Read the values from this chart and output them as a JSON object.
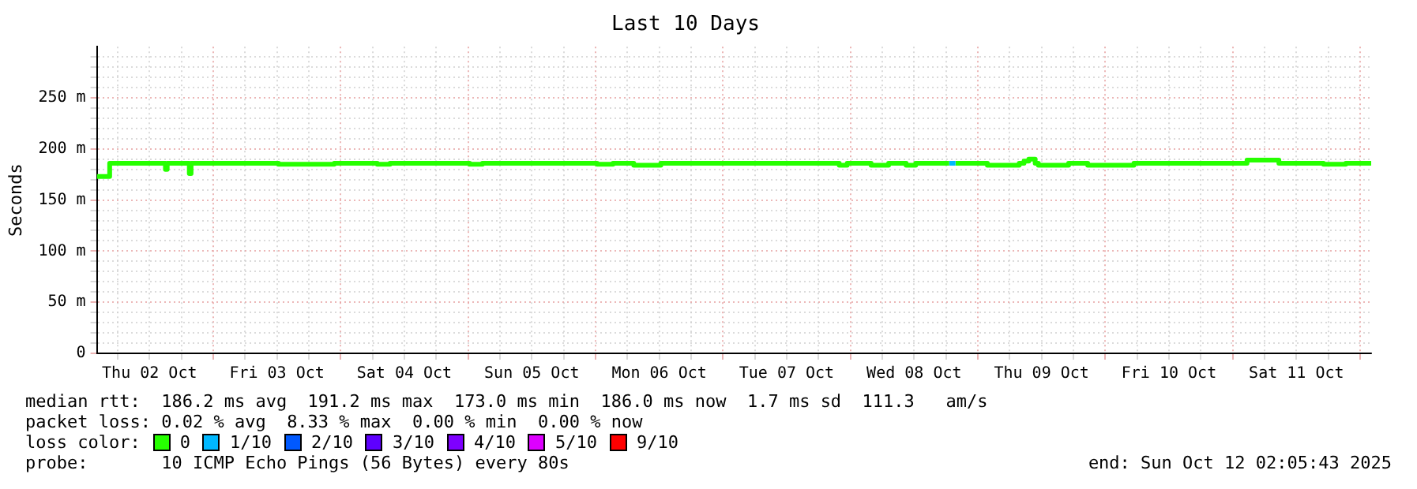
{
  "chart_data": {
    "type": "step",
    "title": "Last 10 Days",
    "ylabel": "Seconds",
    "legend_title": "loss color:",
    "legend": "bottom",
    "grid": true,
    "line_style": "solid",
    "marker": "none",
    "xlim": [
      "2025-10-02T02:05",
      "2025-10-12T02:05"
    ],
    "xticks": [
      {
        "value": "2025-10-02T06:00",
        "label": null
      },
      {
        "value": "2025-10-02T12:00",
        "label": "Thu 02 Oct"
      },
      {
        "value": "2025-10-02T18:00",
        "label": null
      },
      {
        "value": "2025-10-03T00:00",
        "label": null
      },
      {
        "value": "2025-10-03T06:00",
        "label": null
      },
      {
        "value": "2025-10-03T12:00",
        "label": "Fri 03 Oct"
      },
      {
        "value": "2025-10-03T18:00",
        "label": null
      },
      {
        "value": "2025-10-04T00:00",
        "label": null
      },
      {
        "value": "2025-10-04T06:00",
        "label": null
      },
      {
        "value": "2025-10-04T12:00",
        "label": "Sat 04 Oct"
      },
      {
        "value": "2025-10-04T18:00",
        "label": null
      },
      {
        "value": "2025-10-05T00:00",
        "label": null
      },
      {
        "value": "2025-10-05T06:00",
        "label": null
      },
      {
        "value": "2025-10-05T12:00",
        "label": "Sun 05 Oct"
      },
      {
        "value": "2025-10-05T18:00",
        "label": null
      },
      {
        "value": "2025-10-06T00:00",
        "label": null
      },
      {
        "value": "2025-10-06T06:00",
        "label": null
      },
      {
        "value": "2025-10-06T12:00",
        "label": "Mon 06 Oct"
      },
      {
        "value": "2025-10-06T18:00",
        "label": null
      },
      {
        "value": "2025-10-07T00:00",
        "label": null
      },
      {
        "value": "2025-10-07T06:00",
        "label": null
      },
      {
        "value": "2025-10-07T12:00",
        "label": "Tue 07 Oct"
      },
      {
        "value": "2025-10-07T18:00",
        "label": null
      },
      {
        "value": "2025-10-08T00:00",
        "label": null
      },
      {
        "value": "2025-10-08T06:00",
        "label": null
      },
      {
        "value": "2025-10-08T12:00",
        "label": "Wed 08 Oct"
      },
      {
        "value": "2025-10-08T18:00",
        "label": null
      },
      {
        "value": "2025-10-09T00:00",
        "label": null
      },
      {
        "value": "2025-10-09T06:00",
        "label": null
      },
      {
        "value": "2025-10-09T12:00",
        "label": "Thu 09 Oct"
      },
      {
        "value": "2025-10-09T18:00",
        "label": null
      },
      {
        "value": "2025-10-10T00:00",
        "label": null
      },
      {
        "value": "2025-10-10T06:00",
        "label": null
      },
      {
        "value": "2025-10-10T12:00",
        "label": "Fri 10 Oct"
      },
      {
        "value": "2025-10-10T18:00",
        "label": null
      },
      {
        "value": "2025-10-11T00:00",
        "label": null
      },
      {
        "value": "2025-10-11T06:00",
        "label": null
      },
      {
        "value": "2025-10-11T12:00",
        "label": "Sat 11 Oct"
      },
      {
        "value": "2025-10-11T18:00",
        "label": null
      },
      {
        "value": "2025-10-12T00:00",
        "label": null
      }
    ],
    "ylim": [
      0,
      300
    ],
    "yticks": [
      0,
      {
        "value": 10,
        "label": null
      },
      {
        "value": 20,
        "label": null
      },
      {
        "value": 30,
        "label": null
      },
      {
        "value": 40,
        "label": null
      },
      {
        "value": 50,
        "label": "50 m"
      },
      {
        "value": 60,
        "label": null
      },
      {
        "value": 70,
        "label": null
      },
      {
        "value": 80,
        "label": null
      },
      {
        "value": 90,
        "label": null
      },
      {
        "value": 100,
        "label": "100 m"
      },
      {
        "value": 110,
        "label": null
      },
      {
        "value": 120,
        "label": null
      },
      {
        "value": 130,
        "label": null
      },
      {
        "value": 140,
        "label": null
      },
      {
        "value": 150,
        "label": "150 m"
      },
      {
        "value": 160,
        "label": null
      },
      {
        "value": 170,
        "label": null
      },
      {
        "value": 180,
        "label": null
      },
      {
        "value": 190,
        "label": null
      },
      {
        "value": 200,
        "label": "200 m"
      },
      {
        "value": 210,
        "label": null
      },
      {
        "value": 220,
        "label": null
      },
      {
        "value": 230,
        "label": null
      },
      {
        "value": 240,
        "label": null
      },
      {
        "value": 250,
        "label": "250 m"
      },
      {
        "value": 260,
        "label": null
      },
      {
        "value": 270,
        "label": null
      },
      {
        "value": 280,
        "label": null
      },
      {
        "value": 290,
        "label": null
      }
    ],
    "series": [
      {
        "name": "0",
        "color": "#26ff00",
        "x": [
          "2025-10-02T02:05",
          "2025-10-02T04:30",
          "2025-10-02T15:00",
          "2025-10-02T15:20",
          "2025-10-02T19:30",
          "2025-10-02T19:50",
          "2025-10-03T12:18",
          "2025-10-03T22:48",
          "2025-10-04T06:54",
          "2025-10-04T09:18",
          "2025-10-05T00:18",
          "2025-10-05T02:42",
          "2025-10-06T00:18",
          "2025-10-06T03:18",
          "2025-10-06T07:12",
          "2025-10-06T12:18",
          "2025-10-07T21:54",
          "2025-10-07T23:24",
          "2025-10-08T03:54",
          "2025-10-08T07:12",
          "2025-10-08T10:30",
          "2025-10-08T12:18",
          "2025-10-08T18:36",
          "2025-10-08T19:48",
          "2025-10-08T19:50",
          "2025-10-09T01:48",
          "2025-10-09T07:48",
          "2025-10-09T08:42",
          "2025-10-09T09:36",
          "2025-10-09T10:48",
          "2025-10-09T11:24",
          "2025-10-09T17:06",
          "2025-10-09T20:42",
          "2025-10-10T05:24",
          "2025-10-11T02:42",
          "2025-10-11T08:42",
          "2025-10-11T17:06",
          "2025-10-11T21:18",
          "2025-10-12T02:05"
        ],
        "values": [
          173,
          186,
          180,
          186,
          176,
          186,
          185,
          186,
          185,
          186,
          185,
          186,
          185,
          186,
          184,
          186,
          184,
          186,
          184,
          186,
          184,
          186,
          186,
          null,
          186,
          184,
          186,
          188,
          190,
          186,
          184,
          186,
          184,
          186,
          189,
          186,
          185,
          186,
          185
        ]
      },
      {
        "name": "1/10",
        "color": "#00b8ff",
        "x": [
          "2025-10-08T18:36",
          "2025-10-08T19:48"
        ],
        "values": [
          186,
          186
        ]
      },
      {
        "name": "2/10",
        "color": "#0059ff"
      },
      {
        "name": "3/10",
        "color": "#5e00ff"
      },
      {
        "name": "4/10",
        "color": "#7e00ff"
      },
      {
        "name": "5/10",
        "color": "#dd00ff"
      },
      {
        "name": "9/10",
        "color": "#ff0000"
      }
    ],
    "annotations": [
      "median rtt:  186.2 ms avg  191.2 ms max  173.0 ms min  186.0 ms now  1.7 ms sd  111.3   am/s",
      "packet loss: 0.02 % avg  8.33 % max  0.00 % min  0.00 % now",
      "probe:       10 ICMP Echo Pings (56 Bytes) every 80s",
      "end: Sun Oct 12 02:05:43 2025"
    ]
  }
}
